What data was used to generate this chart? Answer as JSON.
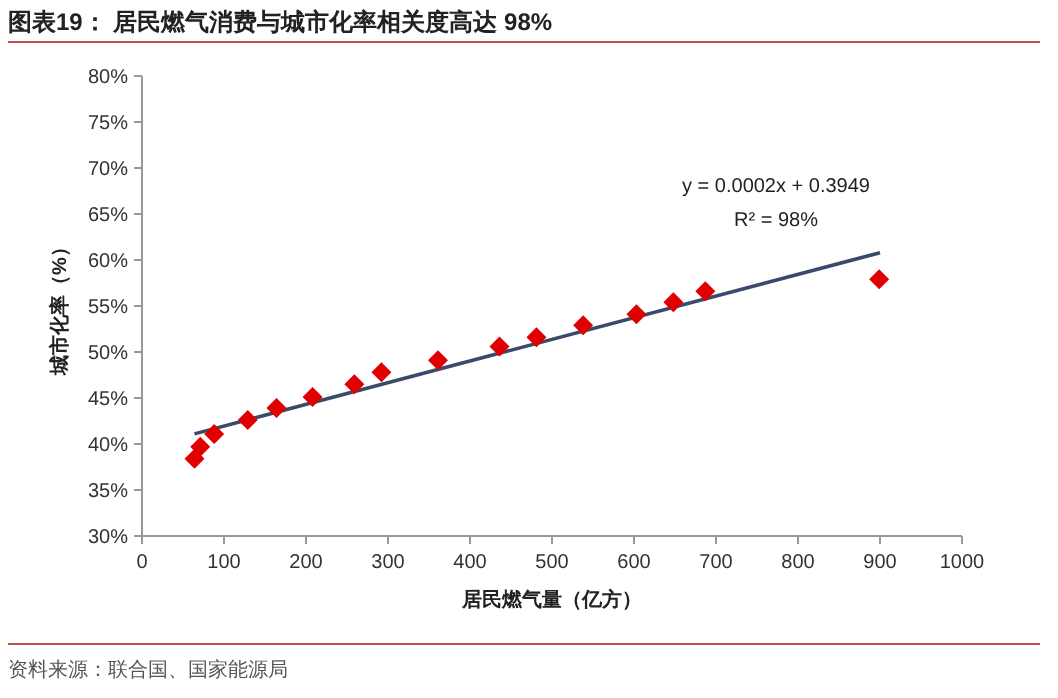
{
  "chart_data": {
    "type": "scatter",
    "title": "图表19：  居民燃气消费与城市化率相关度高达 98%",
    "xlabel": "居民燃气量（亿方）",
    "ylabel": "城市化率（%）",
    "annotations": [
      "y = 0.0002x + 0.3949",
      "R² = 98%",
      "资料来源：联合国、国家能源局"
    ],
    "series": [
      {
        "type": "scatter",
        "color": "#e00000",
        "marker": "diamond",
        "x": [
          64,
          71,
          88,
          129,
          164,
          208,
          259,
          292,
          361,
          436,
          481,
          538,
          603,
          648,
          687,
          899
        ],
        "values": [
          38.4,
          39.7,
          41.1,
          42.6,
          43.9,
          45.1,
          46.5,
          47.8,
          49.1,
          50.6,
          51.6,
          52.9,
          54.1,
          55.4,
          56.6,
          57.9
        ]
      },
      {
        "type": "line",
        "color": "#3b4a6b",
        "marker": "none",
        "x": [
          64,
          900
        ],
        "values": [
          41.1,
          60.8
        ]
      }
    ],
    "xlim": [
      0,
      1000
    ],
    "xticks": [
      0,
      100,
      200,
      300,
      400,
      500,
      600,
      700,
      800,
      900,
      1000
    ],
    "ylim": [
      30,
      80
    ],
    "yticks": [
      {
        "value": 30,
        "label": "30%"
      },
      {
        "value": 35,
        "label": "35%"
      },
      {
        "value": 40,
        "label": "40%"
      },
      {
        "value": 45,
        "label": "45%"
      },
      {
        "value": 50,
        "label": "50%"
      },
      {
        "value": 55,
        "label": "55%"
      },
      {
        "value": 60,
        "label": "60%"
      },
      {
        "value": 65,
        "label": "65%"
      },
      {
        "value": 70,
        "label": "70%"
      },
      {
        "value": 75,
        "label": "75%"
      },
      {
        "value": 80,
        "label": "80%"
      }
    ],
    "grid": false
  }
}
